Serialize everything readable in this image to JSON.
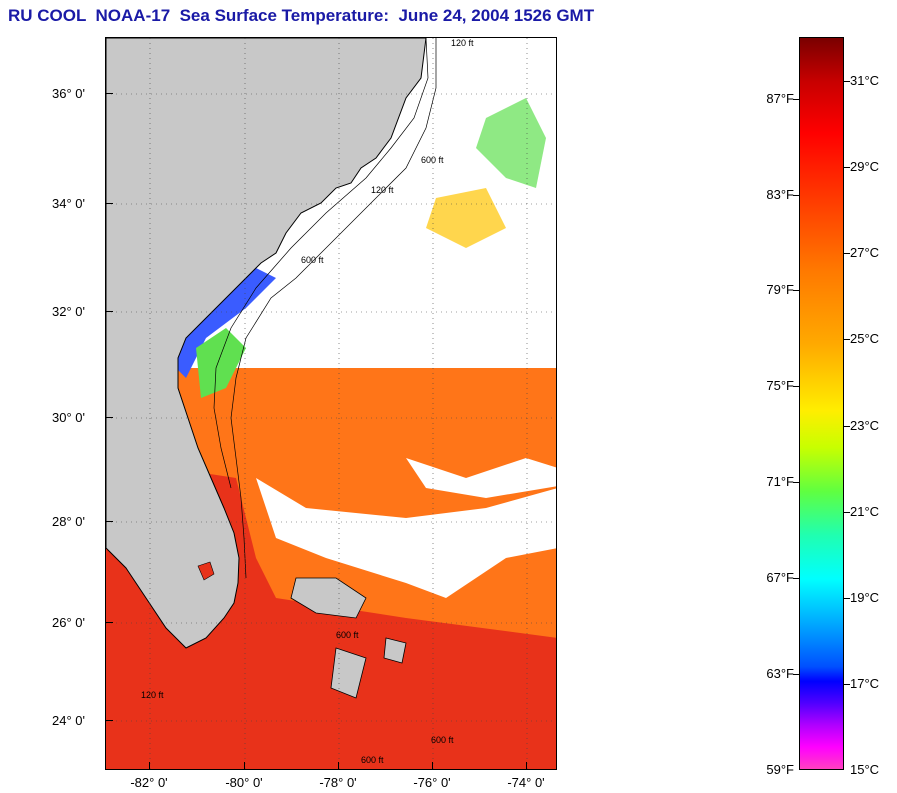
{
  "title": "RU COOL  NOAA-17  Sea Surface Temperature:  June 24, 2004 1526 GMT",
  "map": {
    "latitude_labels": [
      "36° 0'",
      "34° 0'",
      "32° 0'",
      "30° 0'",
      "28° 0'",
      "26° 0'",
      "24° 0'"
    ],
    "longitude_labels": [
      "-82° 0'",
      "-80° 0'",
      "-78° 0'",
      "-76° 0'",
      "-74° 0'"
    ],
    "contour_labels": [
      "120 ft",
      "600 ft",
      "120 ft",
      "600 ft",
      "600 ft",
      "600 ft",
      "120 ft",
      "600 ft"
    ],
    "colors": {
      "land": "#c8c8c8",
      "cloud": "#ffffff",
      "warm_water": "#ff7a1a",
      "hot_water": "#e8261a",
      "cool_water": "#3a5cff",
      "green_water": "#60e050"
    }
  },
  "colorbar": {
    "fahrenheit_labels": [
      "87°F",
      "83°F",
      "79°F",
      "75°F",
      "71°F",
      "67°F",
      "63°F",
      "59°F"
    ],
    "celsius_labels": [
      "31°C",
      "29°C",
      "27°C",
      "25°C",
      "23°C",
      "21°C",
      "19°C",
      "17°C",
      "15°C"
    ]
  }
}
